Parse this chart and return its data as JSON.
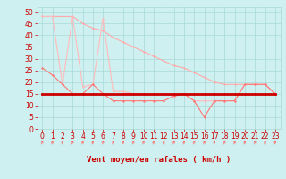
{
  "title": "",
  "xlabel": "Vent moyen/en rafales ( km/h )",
  "bg_color": "#cef0f0",
  "grid_color": "#a8d8d8",
  "spine_color": "#cc3333",
  "x_ticks": [
    0,
    1,
    2,
    3,
    4,
    5,
    6,
    7,
    8,
    9,
    10,
    11,
    12,
    13,
    14,
    15,
    16,
    17,
    18,
    19,
    20,
    21,
    22,
    23
  ],
  "y_ticks": [
    0,
    5,
    10,
    15,
    20,
    25,
    30,
    35,
    40,
    45,
    50
  ],
  "ylim": [
    0,
    52
  ],
  "xlim": [
    -0.5,
    23.5
  ],
  "line_dotted_x": [
    0,
    1,
    2,
    3,
    4,
    5,
    6,
    7,
    8,
    9,
    10,
    11,
    12,
    13,
    14,
    15,
    16,
    17,
    18,
    19,
    20,
    21,
    22,
    23
  ],
  "line_dotted_y": [
    48,
    48,
    48,
    48,
    45,
    43,
    42,
    39,
    37,
    35,
    33,
    31,
    29,
    27,
    26,
    24,
    22,
    20,
    19,
    19,
    19,
    19,
    19,
    15
  ],
  "line_dotted_color": "#ffaaaa",
  "line_medium_x": [
    0,
    1,
    2,
    3,
    4,
    5,
    6,
    7,
    8,
    9,
    10,
    11,
    12,
    13,
    14,
    15,
    16,
    17,
    18,
    19,
    20,
    21,
    22,
    23
  ],
  "line_medium_y": [
    26,
    23,
    19,
    15,
    15,
    19,
    15,
    12,
    12,
    12,
    12,
    12,
    12,
    14,
    15,
    12,
    5,
    12,
    12,
    12,
    19,
    19,
    19,
    15
  ],
  "line_medium_color": "#ff7777",
  "line_bold_x": [
    0,
    1,
    2,
    3,
    4,
    5,
    6,
    7,
    8,
    9,
    10,
    11,
    12,
    13,
    14,
    15,
    16,
    17,
    18,
    19,
    20,
    21,
    22,
    23
  ],
  "line_bold_y": [
    15,
    15,
    15,
    15,
    15,
    15,
    15,
    15,
    15,
    15,
    15,
    15,
    15,
    15,
    15,
    15,
    15,
    15,
    15,
    15,
    15,
    15,
    15,
    15
  ],
  "line_bold_color": "#cc0000",
  "line_peak_x": [
    0,
    1,
    2,
    3,
    4,
    5,
    6,
    7,
    8,
    9,
    10,
    11,
    12,
    13,
    14,
    15,
    16,
    17,
    18,
    19,
    20,
    21,
    22,
    23
  ],
  "line_peak_y": [
    48,
    48,
    19,
    48,
    18,
    19,
    47,
    16,
    16,
    15,
    15,
    15,
    15,
    14,
    15,
    12,
    12,
    12,
    12,
    12,
    19,
    19,
    19,
    15
  ],
  "line_peak_color": "#ffbbbb",
  "font_color": "#cc0000",
  "arrow_color": "#ff6666",
  "tick_fontsize": 5.5,
  "xlabel_fontsize": 6.5
}
